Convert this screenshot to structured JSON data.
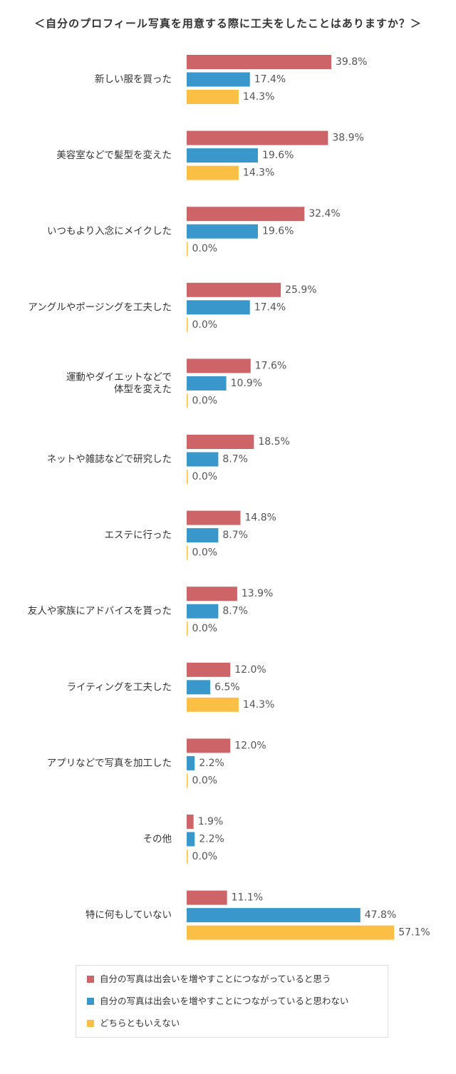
{
  "chart_data": {
    "type": "bar",
    "orientation": "horizontal",
    "title": "＜自分のプロフィール写真を用意する際に工夫をしたことはありますか？＞",
    "categories": [
      "新しい服を買った",
      "美容室などで髪型を変えた",
      "いつもより入念にメイクした",
      "アングルやポージングを工夫した",
      "運動やダイエットなどで\n体型を変えた",
      "ネットや雑誌などで研究した",
      "エステに行った",
      "友人や家族にアドバイスを貰った",
      "ライティングを工夫した",
      "アプリなどで写真を加工した",
      "その他",
      "特に何もしていない"
    ],
    "series": [
      {
        "name": "自分の写真は出会いを増やすことにつながっていると思う",
        "color": "#cd6467",
        "values": [
          39.8,
          38.9,
          32.4,
          25.9,
          17.6,
          18.5,
          14.8,
          13.9,
          12.0,
          12.0,
          1.9,
          11.1
        ],
        "labels": [
          "39.8%",
          "38.9%",
          "32.4%",
          "25.9%",
          "17.6%",
          "18.5%",
          "14.8%",
          "13.9%",
          "12.0%",
          "12.0%",
          "1.9%",
          "11.1%"
        ]
      },
      {
        "name": "自分の写真は出会いを増やすことにつながっていると思わない",
        "color": "#3a97cc",
        "values": [
          17.4,
          19.6,
          19.6,
          17.4,
          10.9,
          8.7,
          8.7,
          8.7,
          6.5,
          2.2,
          2.2,
          47.8
        ],
        "labels": [
          "17.4%",
          "19.6%",
          "19.6%",
          "17.4%",
          "10.9%",
          "8.7%",
          "8.7%",
          "8.7%",
          "6.5%",
          "2.2%",
          "2.2%",
          "47.8%"
        ]
      },
      {
        "name": "どちらともいえない",
        "color": "#fbbf45",
        "values": [
          14.3,
          14.3,
          0.0,
          0.0,
          0.0,
          0.0,
          0.0,
          0.0,
          14.3,
          0.0,
          0.0,
          57.1
        ],
        "labels": [
          "14.3%",
          "14.3%",
          "0.0%",
          "0.0%",
          "0.0%",
          "0.0%",
          "0.0%",
          "0.0%",
          "14.3%",
          "0.0%",
          "0.0%",
          "57.1%"
        ]
      }
    ],
    "xlim": [
      0,
      60
    ],
    "grid": false,
    "legend_position": "bottom"
  }
}
